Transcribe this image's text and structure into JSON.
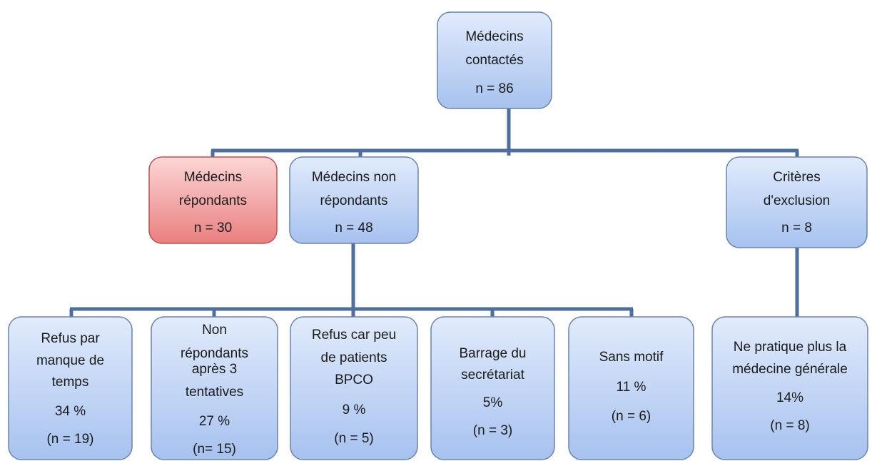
{
  "nodes": [
    {
      "lines": [
        "Médecins",
        "contactés",
        "n = 86"
      ]
    },
    {
      "lines": [
        "Médecins",
        "répondants",
        "n = 30"
      ]
    },
    {
      "lines": [
        "Médecins non",
        "répondants",
        "n = 48"
      ]
    },
    {
      "lines": [
        "Critères",
        "d'exclusion",
        "n = 8"
      ]
    },
    {
      "lines": [
        "Refus par",
        "manque de",
        "temps",
        "34 %",
        "(n = 19)"
      ]
    },
    {
      "lines": [
        "Non",
        "répondants",
        "après 3",
        "tentatives",
        "27 %",
        "(n= 15)"
      ]
    },
    {
      "lines": [
        "Refus car peu",
        "de patients",
        "BPCO",
        "9 %",
        "(n = 5)"
      ]
    },
    {
      "lines": [
        "Barrage du",
        "secrétariat",
        "5%",
        "(n = 3)"
      ]
    },
    {
      "lines": [
        "Sans motif",
        "11 %",
        "(n = 6)"
      ]
    },
    {
      "lines": [
        "Ne pratique plus la",
        "médecine générale",
        "14%",
        "(n = 8)"
      ]
    }
  ]
}
